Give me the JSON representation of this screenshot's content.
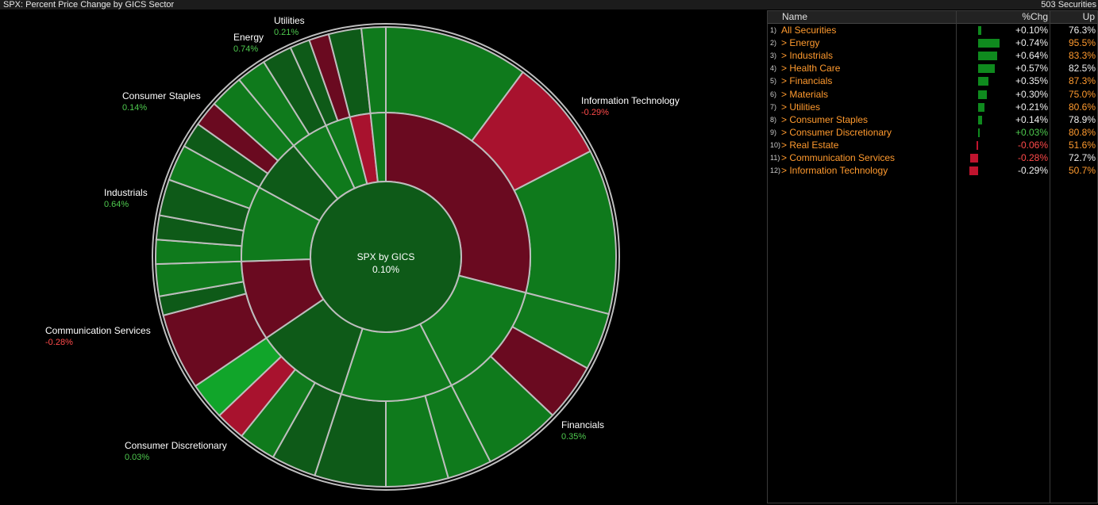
{
  "header": {
    "title": "SPX: Percent Price Change by GICS Sector",
    "count": "503 Securities"
  },
  "center": {
    "label": "SPX by GICS",
    "value": "0.10%"
  },
  "colors": {
    "pos_dark": "#0e5a18",
    "pos_mid": "#0f7a1c",
    "pos_bright": "#11a52a",
    "neg_dark": "#6a0a20",
    "neg_bright": "#a8122e",
    "label_pos": "#4ec94e",
    "label_neg": "#ff4a4a",
    "name_orange": "#ff9a2e"
  },
  "chart_data": {
    "type": "pie",
    "title": "SPX: Percent Price Change by GICS Sector",
    "center_label": "SPX by GICS",
    "center_value": 0.1,
    "sectors": [
      {
        "name": "Information Technology",
        "value_label": "-0.29%",
        "change": -0.29,
        "weight": 29.0
      },
      {
        "name": "Financials",
        "value_label": "0.35%",
        "change": 0.35,
        "weight": 13.5
      },
      {
        "name": "Health Care",
        "value_label": "0.57%",
        "change": 0.57,
        "weight": 12.5
      },
      {
        "name": "Consumer Discretionary",
        "value_label": "0.03%",
        "change": 0.03,
        "weight": 10.5
      },
      {
        "name": "Communication Services",
        "value_label": "-0.28%",
        "change": -0.28,
        "weight": 9.0
      },
      {
        "name": "Industrials",
        "value_label": "0.64%",
        "change": 0.64,
        "weight": 8.5
      },
      {
        "name": "Consumer Staples",
        "value_label": "0.14%",
        "change": 0.14,
        "weight": 6.0
      },
      {
        "name": "Energy",
        "value_label": "0.74%",
        "change": 0.74,
        "weight": 4.2
      },
      {
        "name": "Utilities",
        "value_label": "0.21%",
        "change": 0.21,
        "weight": 2.8
      },
      {
        "name": "Real Estate",
        "value_label": "-0.06%",
        "change": -0.06,
        "weight": 2.3
      },
      {
        "name": "Materials",
        "value_label": "0.30%",
        "change": 0.3,
        "weight": 1.7
      }
    ]
  },
  "table": {
    "columns": {
      "name": "Name",
      "chg": "%Chg",
      "up": "Up"
    },
    "rows": [
      {
        "idx": "1)",
        "name": "All Securities",
        "chg": "+0.10%",
        "up": "76.3%",
        "value": 0.1,
        "chg_color": "white",
        "up_color": "white"
      },
      {
        "idx": "2)",
        "name": "> Energy",
        "chg": "+0.74%",
        "up": "95.5%",
        "value": 0.74,
        "chg_color": "white",
        "up_color": "orange"
      },
      {
        "idx": "3)",
        "name": "> Industrials",
        "chg": "+0.64%",
        "up": "83.3%",
        "value": 0.64,
        "chg_color": "white",
        "up_color": "orange"
      },
      {
        "idx": "4)",
        "name": "> Health Care",
        "chg": "+0.57%",
        "up": "82.5%",
        "value": 0.57,
        "chg_color": "white",
        "up_color": "white"
      },
      {
        "idx": "5)",
        "name": "> Financials",
        "chg": "+0.35%",
        "up": "87.3%",
        "value": 0.35,
        "chg_color": "white",
        "up_color": "orange"
      },
      {
        "idx": "6)",
        "name": "> Materials",
        "chg": "+0.30%",
        "up": "75.0%",
        "value": 0.3,
        "chg_color": "white",
        "up_color": "orange"
      },
      {
        "idx": "7)",
        "name": "> Utilities",
        "chg": "+0.21%",
        "up": "80.6%",
        "value": 0.21,
        "chg_color": "white",
        "up_color": "orange"
      },
      {
        "idx": "8)",
        "name": "> Consumer Staples",
        "chg": "+0.14%",
        "up": "78.9%",
        "value": 0.14,
        "chg_color": "white",
        "up_color": "white"
      },
      {
        "idx": "9)",
        "name": "> Consumer Discretionary",
        "chg": "+0.03%",
        "up": "80.8%",
        "value": 0.03,
        "chg_color": "green",
        "up_color": "orange"
      },
      {
        "idx": "10)",
        "name": "> Real Estate",
        "chg": "-0.06%",
        "up": "51.6%",
        "value": -0.06,
        "chg_color": "red",
        "up_color": "orange"
      },
      {
        "idx": "11)",
        "name": "> Communication Services",
        "chg": "-0.28%",
        "up": "72.7%",
        "value": -0.28,
        "chg_color": "red",
        "up_color": "white"
      },
      {
        "idx": "12)",
        "name": "> Information Technology",
        "chg": "-0.29%",
        "up": "50.7%",
        "value": -0.29,
        "chg_color": "white",
        "up_color": "orange"
      }
    ]
  }
}
